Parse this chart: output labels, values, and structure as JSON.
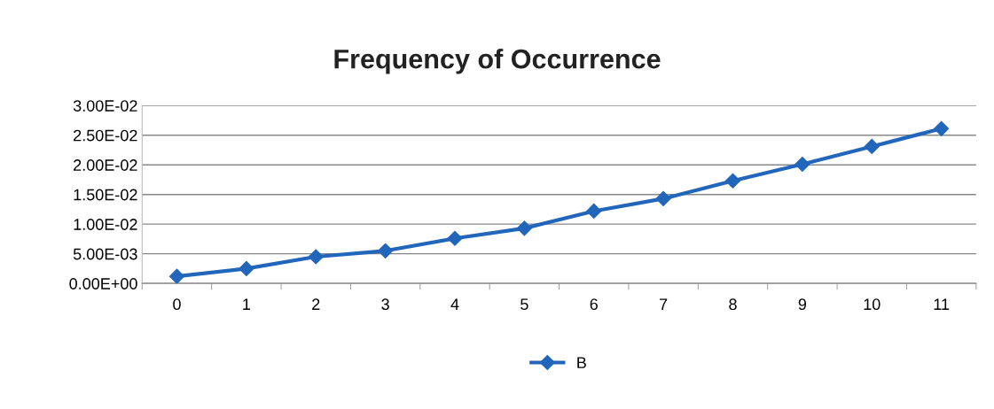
{
  "chart_data": {
    "type": "line",
    "title": "Frequency of Occurrence",
    "categories": [
      "0",
      "1",
      "2",
      "3",
      "4",
      "5",
      "6",
      "7",
      "8",
      "9",
      "10",
      "11"
    ],
    "series": [
      {
        "name": "B",
        "color": "#2266bb",
        "values": [
          0.0012,
          0.0025,
          0.0045,
          0.0055,
          0.0076,
          0.0093,
          0.0122,
          0.0143,
          0.0173,
          0.0201,
          0.0231,
          0.0261
        ]
      }
    ],
    "ylim": [
      0,
      0.03
    ],
    "yticks": [
      {
        "value": 0,
        "label": "0.00E+00"
      },
      {
        "value": 0.005,
        "label": "5.00E-03"
      },
      {
        "value": 0.01,
        "label": "1.00E-02"
      },
      {
        "value": 0.015,
        "label": "1.50E-02"
      },
      {
        "value": 0.02,
        "label": "2.00E-02"
      },
      {
        "value": 0.025,
        "label": "2.50E-02"
      },
      {
        "value": 0.03,
        "label": "3.00E-02"
      }
    ],
    "grid": "y",
    "legend": "bottom",
    "marker": "diamond",
    "line_style": "solid"
  }
}
